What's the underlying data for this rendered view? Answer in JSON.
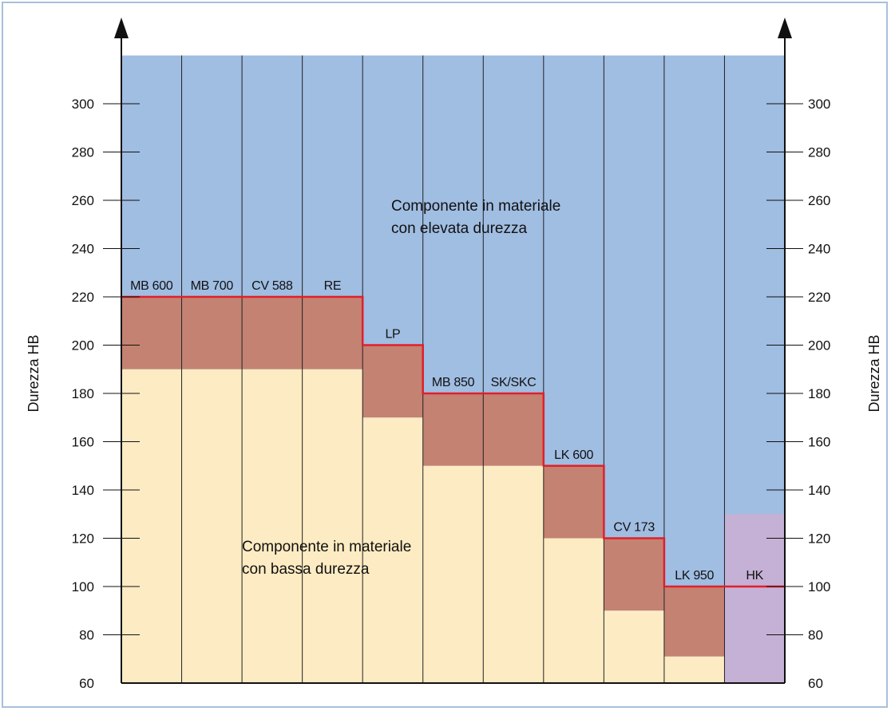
{
  "chart_data": {
    "type": "bar",
    "ylabel_left": "Durezza HB",
    "ylabel_right": "Durezza HB",
    "ylim": [
      60,
      320
    ],
    "yticks": [
      60,
      80,
      100,
      120,
      140,
      160,
      180,
      200,
      220,
      240,
      260,
      280,
      300
    ],
    "categories": [
      "MB 600",
      "MB 700",
      "CV 588",
      "RE",
      "LP",
      "MB 850",
      "SK/SKC",
      "LK 600",
      "CV 173",
      "LK 950",
      "HK"
    ],
    "series": [
      {
        "values": [
          190,
          190,
          190,
          190,
          170,
          150,
          150,
          120,
          90,
          71,
          60
        ]
      },
      {
        "values": [
          220,
          220,
          220,
          220,
          200,
          180,
          180,
          150,
          120,
          100,
          130
        ]
      }
    ],
    "annotations": {
      "upper_line1": "Componente in materiale",
      "upper_line2": "con elevata durezza",
      "lower_line1": "Componente in materiale",
      "lower_line2": "con bassa durezza"
    },
    "grid": true,
    "colors": {
      "high_hardness_region": "#a0bde2",
      "low_hardness_region": "#fdebc3",
      "hardness_band": "#c48272",
      "hk_band": "#c5b1d5",
      "limit_line": "#e0202a",
      "frame": "#a9bfdc"
    }
  }
}
